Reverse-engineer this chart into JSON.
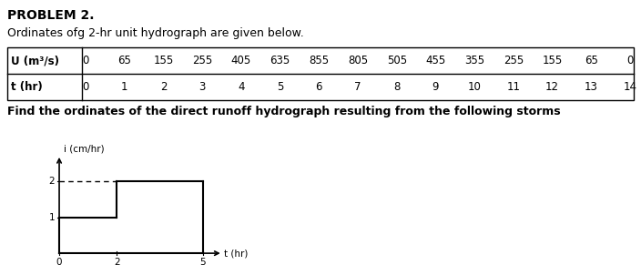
{
  "title": "PROBLEM 2.",
  "subtitle": "Ordinates ofg 2-hr unit hydrograph are given below.",
  "find_text": "Find the ordinates of the direct runoff hydrograph resulting from the following storms",
  "table_header_U": "U (m³/s)",
  "table_header_t": "t (hr)",
  "U_values": [
    0,
    65,
    155,
    255,
    405,
    635,
    855,
    805,
    505,
    455,
    355,
    255,
    155,
    65,
    0
  ],
  "t_values": [
    0,
    1,
    2,
    3,
    4,
    5,
    6,
    7,
    8,
    9,
    10,
    11,
    12,
    13,
    14
  ],
  "graph_xlabel": "t (hr)",
  "graph_ylabel": "i (cm/hr)",
  "yticks": [
    1,
    2
  ],
  "xticks": [
    0,
    2,
    5
  ],
  "bg_color": "#ffffff",
  "text_color": "#000000",
  "line_color": "#000000",
  "title_fontsize": 10,
  "subtitle_fontsize": 9,
  "table_fontsize": 8.5,
  "find_fontsize": 9,
  "chart_fontsize": 7.5
}
